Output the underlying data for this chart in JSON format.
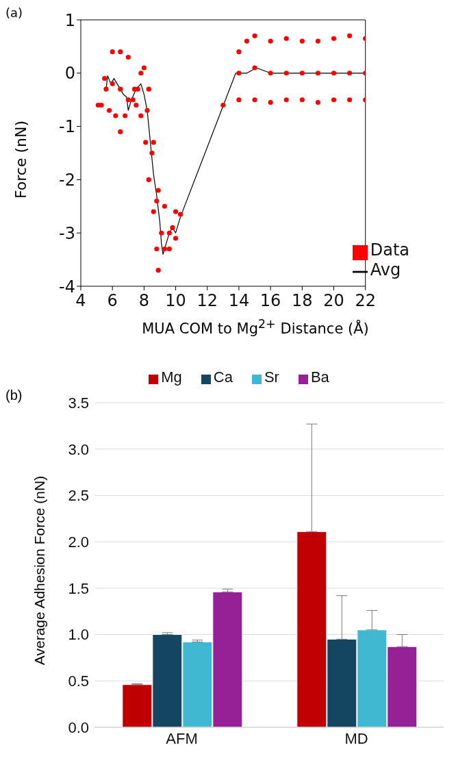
{
  "chart_data": [
    {
      "type": "scatter",
      "title": "(a)",
      "xlabel": "MUA COM to Mg$^{2+}$ Distance (Å)",
      "ylabel": "Force (nN)",
      "xlim": [
        4,
        22
      ],
      "xticks": [
        4,
        6,
        8,
        10,
        12,
        14,
        16,
        18,
        20,
        22
      ],
      "ylim": [
        -4,
        1
      ],
      "yticks": [
        -4,
        -3,
        -2,
        -1,
        0,
        1
      ],
      "grid": false,
      "legend": "bottom right",
      "series": [
        {
          "name": "Data",
          "type": "scatter",
          "color": "#ff0000",
          "marker": "circle",
          "x": [
            5.1,
            5.5,
            6.0,
            6.5,
            7.0,
            7.4,
            7.8,
            8.0,
            8.3,
            8.6,
            8.9,
            9.3,
            9.6,
            10.0,
            10.3,
            13.0,
            14.0,
            14.5,
            15,
            16,
            17,
            18,
            19,
            20,
            21,
            22,
            5.3,
            5.8,
            6.2,
            6.5,
            6.8,
            7.3,
            7.5,
            7.8,
            8.1,
            8.3,
            8.6,
            8.8,
            8.9,
            9.3,
            9.6,
            10.0,
            14.0,
            15,
            16,
            17,
            18,
            19,
            20,
            21,
            22,
            5.6,
            6.0,
            6.5,
            7.0,
            7.6,
            8.2,
            8.5,
            8.8,
            9.1,
            9.8,
            14,
            15,
            16,
            17,
            18,
            19,
            20,
            21,
            22
          ],
          "values": [
            -0.6,
            -0.1,
            0.4,
            0.4,
            0.3,
            -0.3,
            0.0,
            0.1,
            -0.3,
            -1.3,
            -2.2,
            -2.5,
            -3.0,
            -2.6,
            -2.65,
            -0.6,
            0.4,
            0.6,
            0.7,
            0.6,
            0.65,
            0.6,
            0.6,
            0.65,
            0.7,
            0.65,
            -0.6,
            -0.7,
            -0.8,
            -1.1,
            -0.8,
            -0.5,
            -0.6,
            -0.8,
            -1.3,
            -2.0,
            -2.6,
            -3.3,
            -3.7,
            -3.3,
            -3.3,
            -3.1,
            -0.5,
            -0.5,
            -0.55,
            -0.5,
            -0.5,
            -0.55,
            -0.5,
            -0.5,
            -0.5,
            -0.3,
            -0.2,
            -0.3,
            -0.5,
            -0.3,
            -0.7,
            -1.5,
            -2.4,
            -3.0,
            -2.9,
            0,
            0.1,
            0,
            0,
            0,
            0,
            0,
            0,
            0
          ]
        },
        {
          "name": "Avg",
          "type": "line",
          "color": "#000000",
          "marker": "none",
          "x": [
            5.6,
            5.7,
            5.9,
            6.1,
            6.3,
            6.5,
            6.7,
            6.9,
            7.0,
            7.2,
            7.5,
            7.8,
            8.0,
            8.2,
            8.4,
            8.6,
            8.8,
            9.0,
            9.1,
            9.2,
            9.6,
            9.8,
            10.0,
            10.3,
            13.8,
            14.5,
            15.1,
            16,
            18,
            20,
            22
          ],
          "values": [
            -0.3,
            -0.05,
            -0.2,
            -0.1,
            -0.2,
            -0.3,
            -0.4,
            -0.45,
            -0.7,
            -0.5,
            -0.3,
            -0.2,
            -0.4,
            -0.7,
            -1.3,
            -1.9,
            -2.3,
            -2.8,
            -3.2,
            -3.4,
            -3.0,
            -2.9,
            -3.0,
            -2.7,
            0,
            0,
            0.1,
            0,
            0,
            0,
            0
          ]
        }
      ]
    },
    {
      "type": "bar",
      "title": "(b)",
      "ylabel": "Average Adhesion Force (nN)",
      "categories": [
        "AFM",
        "MD"
      ],
      "ylim": [
        0,
        3.5
      ],
      "yticks": [
        {
          "value": 0,
          "label": "0.0"
        },
        {
          "value": 0.5,
          "label": "0.5"
        },
        {
          "value": 1,
          "label": "1.0"
        },
        {
          "value": 1.5,
          "label": "1.5"
        },
        {
          "value": 2,
          "label": "2.0"
        },
        {
          "value": 2.5,
          "label": "2.5"
        },
        {
          "value": 3,
          "label": "3.0"
        },
        {
          "value": 3.5,
          "label": "3.5"
        }
      ],
      "grid": "y",
      "legend": "top",
      "series": [
        {
          "name": "Mg",
          "color": "#c00000",
          "values": [
            0.46,
            2.11
          ],
          "errors": [
            [
              0.46,
              0.47
            ],
            [
              2.11,
              3.27
            ]
          ]
        },
        {
          "name": "Ca",
          "color": "#144661",
          "values": [
            1.0,
            0.95
          ],
          "errors": [
            [
              1.0,
              1.02
            ],
            [
              0.95,
              1.42
            ]
          ]
        },
        {
          "name": "Sr",
          "color": "#41b8d2",
          "values": [
            0.92,
            1.05
          ],
          "errors": [
            [
              0.92,
              0.94
            ],
            [
              1.05,
              1.26
            ]
          ]
        },
        {
          "name": "Ba",
          "color": "#962096",
          "values": [
            1.46,
            0.87
          ],
          "errors": [
            [
              1.46,
              1.49
            ],
            [
              0.87,
              1.0
            ]
          ]
        }
      ]
    }
  ]
}
